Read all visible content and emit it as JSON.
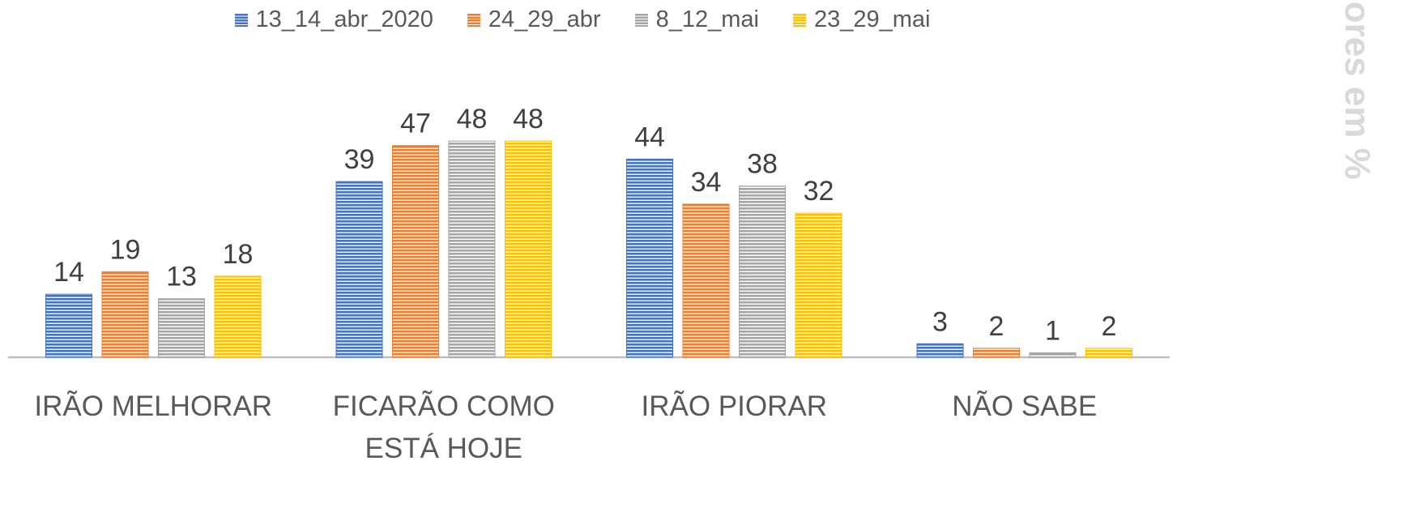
{
  "chart_data": {
    "type": "bar",
    "axis_label": "Valores em %",
    "categories": [
      "IRÃO MELHORAR",
      "FICARÃO COMO ESTÁ HOJE",
      "IRÃO PIORAR",
      "NÃO SABE"
    ],
    "series": [
      {
        "name": "13_14_abr_2020",
        "color": "#4472c4",
        "values": [
          14,
          39,
          44,
          3
        ]
      },
      {
        "name": "24_29_abr",
        "color": "#ed7d31",
        "values": [
          19,
          47,
          34,
          2
        ]
      },
      {
        "name": "8_12_mai",
        "color": "#a5a5a5",
        "values": [
          13,
          48,
          38,
          1
        ]
      },
      {
        "name": "23_29_mai",
        "color": "#ffc000",
        "values": [
          18,
          48,
          32,
          2
        ]
      }
    ],
    "ylim": [
      0,
      50
    ],
    "legend": "top"
  }
}
